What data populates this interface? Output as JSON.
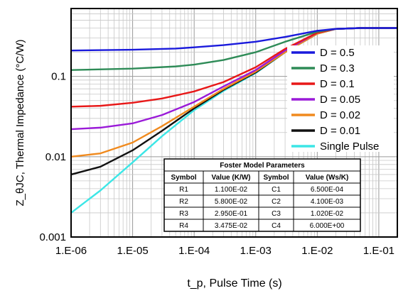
{
  "chart_data": {
    "type": "line",
    "xlabel": "t_p, Pulse Time (s)",
    "ylabel": "Z_θJC, Thermal Impedance (°C/W)",
    "x_scale": "log",
    "y_scale": "log",
    "xlim": [
      1e-06,
      0.2
    ],
    "ylim": [
      0.001,
      0.7
    ],
    "x_ticks": [
      {
        "value": 1e-06,
        "label": "1.E-06"
      },
      {
        "value": 1e-05,
        "label": "1.E-05"
      },
      {
        "value": 0.0001,
        "label": "1.E-04"
      },
      {
        "value": 0.001,
        "label": "1.E-03"
      },
      {
        "value": 0.01,
        "label": "1.E-02"
      },
      {
        "value": 0.1,
        "label": "1.E-01"
      }
    ],
    "y_ticks": [
      {
        "value": 0.001,
        "label": "0.001"
      },
      {
        "value": 0.01,
        "label": "0.01"
      },
      {
        "value": 0.1,
        "label": "0.1"
      }
    ],
    "grid": true,
    "legend_position": "right",
    "series": [
      {
        "name": "D = 0.5",
        "color": "#1a1adc",
        "x": [
          1e-06,
          1e-05,
          5e-05,
          0.0001,
          0.0003,
          0.001,
          0.003,
          0.01,
          0.02,
          0.05,
          0.1,
          0.2
        ],
        "y": [
          0.21,
          0.215,
          0.222,
          0.23,
          0.245,
          0.27,
          0.31,
          0.37,
          0.39,
          0.4,
          0.4,
          0.4
        ]
      },
      {
        "name": "D = 0.3",
        "color": "#2e8b57",
        "x": [
          1e-06,
          1e-05,
          5e-05,
          0.0001,
          0.0003,
          0.001,
          0.003,
          0.01,
          0.02,
          0.05,
          0.1,
          0.2
        ],
        "y": [
          0.12,
          0.125,
          0.133,
          0.14,
          0.16,
          0.2,
          0.27,
          0.36,
          0.39,
          0.4,
          0.4,
          0.4
        ]
      },
      {
        "name": "D = 0.1",
        "color": "#e81818",
        "x": [
          1e-06,
          3e-06,
          1e-05,
          3e-05,
          0.0001,
          0.0003,
          0.001,
          0.003,
          0.01,
          0.02,
          0.05,
          0.1,
          0.2
        ],
        "y": [
          0.042,
          0.043,
          0.047,
          0.053,
          0.065,
          0.085,
          0.13,
          0.22,
          0.35,
          0.39,
          0.4,
          0.4,
          0.4
        ]
      },
      {
        "name": "D = 0.05",
        "color": "#9a1ad8",
        "x": [
          1e-06,
          3e-06,
          1e-05,
          3e-05,
          0.0001,
          0.0003,
          0.001,
          0.003,
          0.01,
          0.02,
          0.05,
          0.1,
          0.2
        ],
        "y": [
          0.022,
          0.023,
          0.026,
          0.033,
          0.048,
          0.075,
          0.12,
          0.21,
          0.35,
          0.39,
          0.4,
          0.4,
          0.4
        ]
      },
      {
        "name": "D = 0.02",
        "color": "#f08a1e",
        "x": [
          1e-06,
          3e-06,
          1e-05,
          3e-05,
          0.0001,
          0.0003,
          0.001,
          0.003,
          0.01,
          0.02,
          0.05,
          0.1,
          0.2
        ],
        "y": [
          0.01,
          0.011,
          0.015,
          0.024,
          0.042,
          0.07,
          0.115,
          0.2,
          0.34,
          0.39,
          0.4,
          0.4,
          0.4
        ]
      },
      {
        "name": "D = 0.01",
        "color": "#111111",
        "x": [
          1e-06,
          3e-06,
          1e-05,
          3e-05,
          0.0001,
          0.0003,
          0.001,
          0.003,
          0.01,
          0.02,
          0.05,
          0.1,
          0.2
        ],
        "y": [
          0.006,
          0.0075,
          0.012,
          0.021,
          0.04,
          0.068,
          0.112,
          0.2,
          0.34,
          0.39,
          0.4,
          0.4,
          0.4
        ]
      },
      {
        "name": "Single Pulse",
        "color": "#3ce6e6",
        "x": [
          1e-06,
          3e-06,
          1e-05,
          3e-05,
          0.0001,
          0.0003,
          0.001,
          0.003,
          0.01,
          0.02,
          0.05,
          0.1,
          0.2
        ],
        "y": [
          0.002,
          0.0038,
          0.0085,
          0.018,
          0.038,
          0.066,
          0.11,
          0.2,
          0.34,
          0.39,
          0.4,
          0.4,
          0.4
        ]
      }
    ],
    "table": {
      "title": "Foster Model Parameters",
      "headers": [
        "Symbol",
        "Value (K/W)",
        "Symbol",
        "Value (Ws/K)"
      ],
      "rows": [
        [
          "R1",
          "1.100E-02",
          "C1",
          "6.500E-04"
        ],
        [
          "R2",
          "5.800E-02",
          "C2",
          "4.100E-03"
        ],
        [
          "R3",
          "2.950E-01",
          "C3",
          "1.020E-02"
        ],
        [
          "R4",
          "3.475E-02",
          "C4",
          "6.000E+00"
        ]
      ]
    }
  }
}
